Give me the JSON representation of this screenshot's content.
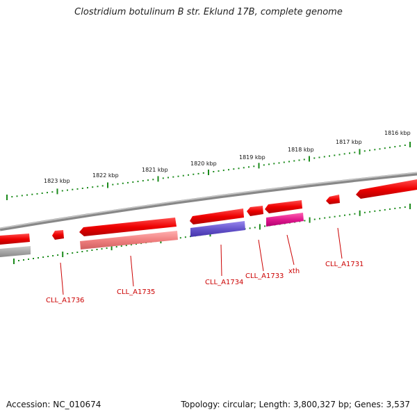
{
  "title": "Clostridium botulinum B str. Eklund 17B, complete genome",
  "footer": {
    "accession": "Accession: NC_010674",
    "topology": "Topology: circular; Length: 3,800,327 bp; Genes: 3,537"
  },
  "scale_labels": [
    "1823 kbp",
    "1822 kbp",
    "1821 kbp",
    "1820 kbp",
    "1819 kbp",
    "1818 kbp",
    "1817 kbp",
    "1816 kbp"
  ],
  "genes": [
    {
      "name": "CLL_A1736"
    },
    {
      "name": "CLL_A1735"
    },
    {
      "name": "CLL_A1734"
    },
    {
      "name": "CLL_A1733"
    },
    {
      "name": "xth"
    },
    {
      "name": "CLL_A1731"
    }
  ],
  "colors": {
    "backbone": "#808080",
    "gene_red": "#ee0000",
    "gene_pink": "#f08080",
    "gene_purple": "#6655cc",
    "gene_magenta": "#e0188c",
    "gene_gray": "#a0a0a0",
    "tick_green": "#1a8a1a",
    "label_red": "#cc0000"
  }
}
